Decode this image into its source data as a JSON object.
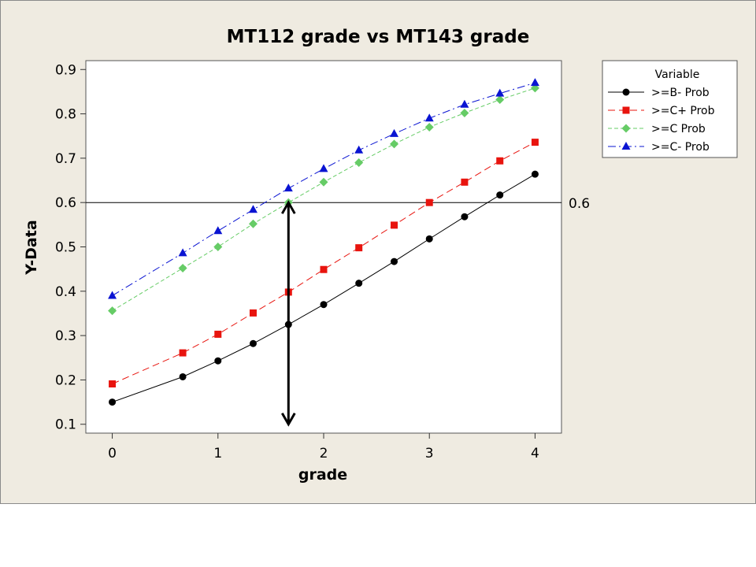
{
  "chart_data": {
    "type": "line",
    "title": "MT112 grade vs MT143 grade",
    "xlabel": "grade",
    "ylabel": "Y-Data",
    "xlim": [
      -0.25,
      4.25
    ],
    "ylim": [
      0.08,
      0.92
    ],
    "x_ticks": [
      "0",
      "1",
      "2",
      "3",
      "4"
    ],
    "y_ticks": [
      "0.1",
      "0.2",
      "0.3",
      "0.4",
      "0.5",
      "0.6",
      "0.7",
      "0.8",
      "0.9"
    ],
    "x": [
      0,
      0.667,
      1,
      1.333,
      1.667,
      2,
      2.333,
      2.667,
      3,
      3.333,
      3.667,
      4
    ],
    "series": [
      {
        "name": ">=B- Prob",
        "color": "#000000",
        "marker": "circle",
        "dash": "solid",
        "values": [
          0.15,
          0.207,
          0.243,
          0.282,
          0.325,
          0.37,
          0.418,
          0.467,
          0.518,
          0.568,
          0.617,
          0.664
        ]
      },
      {
        "name": ">=C+ Prob",
        "color": "#e8140e",
        "marker": "square",
        "dash": "long-dash",
        "values": [
          0.191,
          0.261,
          0.303,
          0.351,
          0.398,
          0.449,
          0.498,
          0.549,
          0.6,
          0.646,
          0.694,
          0.736
        ]
      },
      {
        "name": ">=C Prob",
        "color": "#66cc66",
        "marker": "diamond",
        "dash": "dash",
        "values": [
          0.356,
          0.452,
          0.5,
          0.552,
          0.6,
          0.646,
          0.69,
          0.732,
          0.77,
          0.802,
          0.832,
          0.858
        ]
      },
      {
        "name": ">=C- Prob",
        "color": "#0a14d2",
        "marker": "triangle",
        "dash": "dash-dot",
        "values": [
          0.39,
          0.486,
          0.536,
          0.584,
          0.632,
          0.676,
          0.718,
          0.755,
          0.79,
          0.821,
          0.846,
          0.87
        ]
      }
    ],
    "reference_line": {
      "y": 0.6,
      "label": "0.6"
    },
    "arrow": {
      "x": 1.667,
      "y_from": 0.1,
      "y_to": 0.6
    },
    "legend": {
      "title": "Variable",
      "placement": "right"
    },
    "grid": false
  },
  "colors": {
    "background": "#efebe1",
    "plot_area": "#ffffff"
  }
}
